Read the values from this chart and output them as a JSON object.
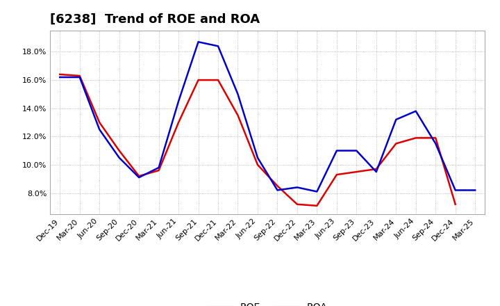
{
  "title": "[6238]  Trend of ROE and ROA",
  "labels": [
    "Dec-19",
    "Mar-20",
    "Jun-20",
    "Sep-20",
    "Dec-20",
    "Mar-21",
    "Jun-21",
    "Sep-21",
    "Dec-21",
    "Mar-22",
    "Jun-22",
    "Sep-22",
    "Dec-22",
    "Mar-23",
    "Jun-23",
    "Sep-23",
    "Dec-23",
    "Mar-24",
    "Jun-24",
    "Sep-24",
    "Dec-24",
    "Mar-25"
  ],
  "ROE": [
    16.4,
    16.3,
    13.0,
    11.0,
    9.2,
    9.6,
    13.0,
    16.0,
    16.0,
    13.5,
    10.0,
    8.5,
    7.2,
    7.1,
    9.3,
    9.5,
    9.7,
    11.5,
    11.9,
    11.9,
    7.2,
    null
  ],
  "ROA": [
    16.2,
    16.2,
    12.5,
    10.5,
    9.1,
    9.8,
    14.5,
    18.7,
    18.4,
    15.0,
    10.5,
    8.2,
    8.4,
    8.1,
    11.0,
    11.0,
    9.5,
    13.2,
    13.8,
    11.5,
    8.2,
    8.2
  ],
  "ROE_color": "#dd0000",
  "ROA_color": "#0000cc",
  "bg_color": "#ffffff",
  "grid_color": "#aaaaaa",
  "ylim": [
    6.5,
    19.5
  ],
  "yticks": [
    8.0,
    10.0,
    12.0,
    14.0,
    16.0,
    18.0
  ],
  "title_fontsize": 13,
  "legend_fontsize": 10,
  "tick_fontsize": 8
}
